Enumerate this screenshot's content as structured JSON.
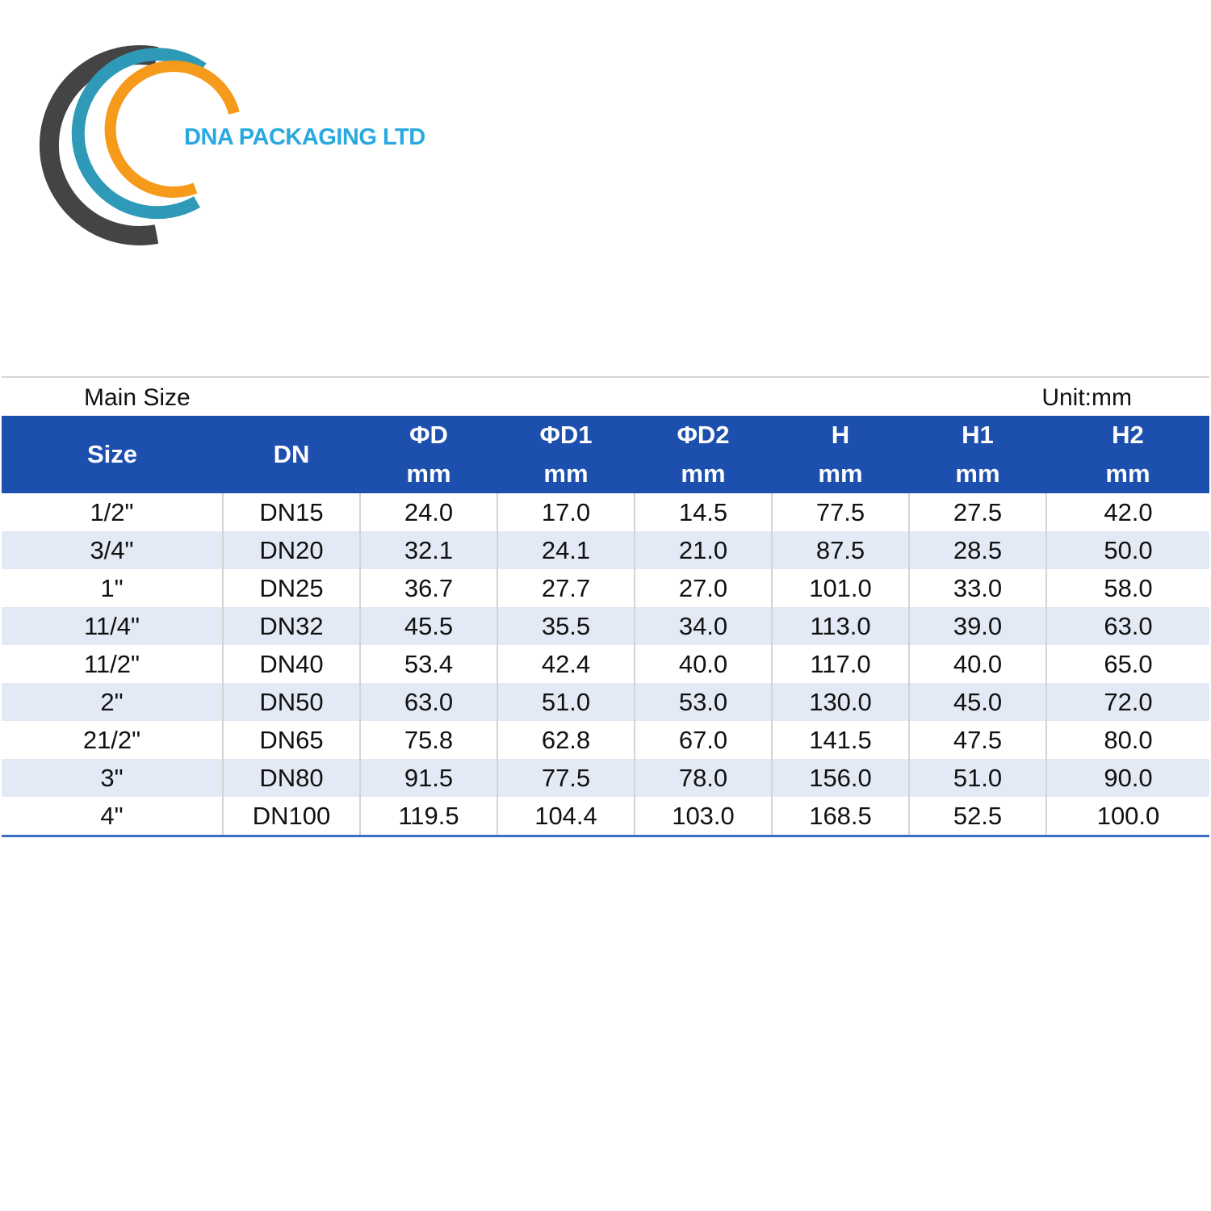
{
  "logo": {
    "text": "DNA PACKAGING LTD"
  },
  "table": {
    "caption": "Main Size",
    "unit": "Unit:mm",
    "headers": [
      {
        "label": "Size"
      },
      {
        "label": "DN"
      },
      {
        "label": "ΦD",
        "unit": "mm"
      },
      {
        "label": "ΦD1",
        "unit": "mm"
      },
      {
        "label": "ΦD2",
        "unit": "mm"
      },
      {
        "label": "H",
        "unit": "mm"
      },
      {
        "label": "H1",
        "unit": "mm"
      },
      {
        "label": "H2",
        "unit": "mm"
      }
    ],
    "rows": [
      [
        "1/2\"",
        "DN15",
        "24.0",
        "17.0",
        "14.5",
        "77.5",
        "27.5",
        "42.0"
      ],
      [
        "3/4\"",
        "DN20",
        "32.1",
        "24.1",
        "21.0",
        "87.5",
        "28.5",
        "50.0"
      ],
      [
        "1\"",
        "DN25",
        "36.7",
        "27.7",
        "27.0",
        "101.0",
        "33.0",
        "58.0"
      ],
      [
        "11/4\"",
        "DN32",
        "45.5",
        "35.5",
        "34.0",
        "113.0",
        "39.0",
        "63.0"
      ],
      [
        "11/2\"",
        "DN40",
        "53.4",
        "42.4",
        "40.0",
        "117.0",
        "40.0",
        "65.0"
      ],
      [
        "2\"",
        "DN50",
        "63.0",
        "51.0",
        "53.0",
        "130.0",
        "45.0",
        "72.0"
      ],
      [
        "21/2\"",
        "DN65",
        "75.8",
        "62.8",
        "67.0",
        "141.5",
        "47.5",
        "80.0"
      ],
      [
        "3\"",
        "DN80",
        "91.5",
        "77.5",
        "78.0",
        "156.0",
        "51.0",
        "90.0"
      ],
      [
        "4\"",
        "DN100",
        "119.5",
        "104.4",
        "103.0",
        "168.5",
        "52.5",
        "100.0"
      ]
    ]
  }
}
